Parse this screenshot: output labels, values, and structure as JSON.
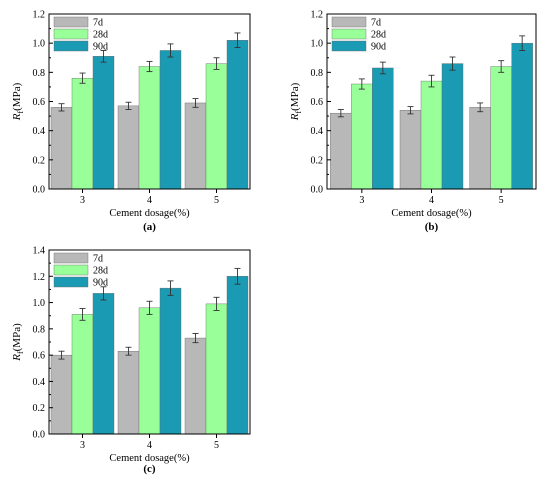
{
  "colors": {
    "7d": "#b8b8b8",
    "28d": "#99ff99",
    "90d": "#1a9bb3",
    "axis": "#000000",
    "error": "#333333"
  },
  "chart_data": [
    {
      "type": "bar",
      "panel_label": "(a)",
      "xlabel": "Cement dosage(%)",
      "ylabel": {
        "main": "R",
        "sub": "f",
        "unit": "(MPa)"
      },
      "categories": [
        "3",
        "4",
        "5"
      ],
      "ylim": [
        0,
        1.2
      ],
      "yticks": [
        "0.0",
        "0.2",
        "0.4",
        "0.6",
        "0.8",
        "1.0",
        "1.2"
      ],
      "legend_position": "top-left",
      "series": [
        {
          "name": "7d",
          "values": [
            0.56,
            0.57,
            0.59
          ],
          "errors": [
            0.025,
            0.025,
            0.03
          ]
        },
        {
          "name": "28d",
          "values": [
            0.76,
            0.84,
            0.86
          ],
          "errors": [
            0.035,
            0.035,
            0.04
          ]
        },
        {
          "name": "90d",
          "values": [
            0.91,
            0.95,
            1.02
          ],
          "errors": [
            0.04,
            0.045,
            0.05
          ]
        }
      ]
    },
    {
      "type": "bar",
      "panel_label": "(b)",
      "xlabel": "Cement dosage(%)",
      "ylabel": {
        "main": "R",
        "sub": "f",
        "unit": "(MPa)"
      },
      "categories": [
        "3",
        "4",
        "5"
      ],
      "ylim": [
        0,
        1.2
      ],
      "yticks": [
        "0.0",
        "0.2",
        "0.4",
        "0.6",
        "0.8",
        "1.0",
        "1.2"
      ],
      "legend_position": "top-left",
      "series": [
        {
          "name": "7d",
          "values": [
            0.52,
            0.54,
            0.56
          ],
          "errors": [
            0.025,
            0.025,
            0.03
          ]
        },
        {
          "name": "28d",
          "values": [
            0.72,
            0.74,
            0.84
          ],
          "errors": [
            0.035,
            0.04,
            0.04
          ]
        },
        {
          "name": "90d",
          "values": [
            0.83,
            0.86,
            1.0
          ],
          "errors": [
            0.04,
            0.045,
            0.05
          ]
        }
      ]
    },
    {
      "type": "bar",
      "panel_label": "(c)",
      "xlabel": "Cement dosage(%)",
      "ylabel": {
        "main": "R",
        "sub": "f",
        "unit": "(MPa)"
      },
      "categories": [
        "3",
        "4",
        "5"
      ],
      "ylim": [
        0,
        1.4
      ],
      "yticks": [
        "0.0",
        "0.2",
        "0.4",
        "0.6",
        "0.8",
        "1.0",
        "1.2",
        "1.4"
      ],
      "legend_position": "top-left",
      "series": [
        {
          "name": "7d",
          "values": [
            0.6,
            0.63,
            0.73
          ],
          "errors": [
            0.03,
            0.03,
            0.035
          ]
        },
        {
          "name": "28d",
          "values": [
            0.91,
            0.96,
            0.99
          ],
          "errors": [
            0.045,
            0.05,
            0.05
          ]
        },
        {
          "name": "90d",
          "values": [
            1.07,
            1.11,
            1.2
          ],
          "errors": [
            0.05,
            0.055,
            0.06
          ]
        }
      ]
    }
  ]
}
